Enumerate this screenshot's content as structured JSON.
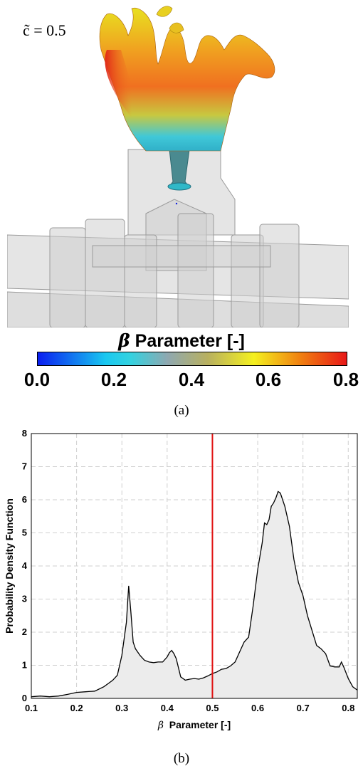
{
  "panel_a": {
    "annotation": "c̃ = 0.5",
    "colorbar": {
      "symbol": "β",
      "title": "Parameter [-]",
      "ticks": [
        "0.0",
        "0.2",
        "0.4",
        "0.6",
        "0.8"
      ],
      "colormap": "jet"
    },
    "caption": "(a)"
  },
  "panel_b": {
    "caption": "(b)"
  },
  "chart_data": {
    "type": "area",
    "xlabel_symbol": "β",
    "xlabel": "Parameter [-]",
    "ylabel": "Probability Density Function",
    "xlim": [
      0.1,
      0.82
    ],
    "ylim": [
      0,
      8
    ],
    "xticks": [
      "0.1",
      "0.2",
      "0.3",
      "0.4",
      "0.5",
      "0.6",
      "0.7",
      "0.8"
    ],
    "yticks": [
      "0",
      "1",
      "2",
      "3",
      "4",
      "5",
      "6",
      "7",
      "8"
    ],
    "grid": true,
    "reference_line": {
      "x": 0.5,
      "color": "#e01010"
    },
    "fill_color": "#ececec",
    "line_color": "#000000",
    "x": [
      0.1,
      0.12,
      0.14,
      0.16,
      0.18,
      0.2,
      0.22,
      0.24,
      0.26,
      0.27,
      0.28,
      0.29,
      0.3,
      0.31,
      0.315,
      0.32,
      0.325,
      0.33,
      0.34,
      0.35,
      0.36,
      0.37,
      0.38,
      0.39,
      0.4,
      0.405,
      0.41,
      0.415,
      0.42,
      0.43,
      0.44,
      0.45,
      0.46,
      0.47,
      0.48,
      0.49,
      0.5,
      0.51,
      0.52,
      0.53,
      0.54,
      0.55,
      0.56,
      0.57,
      0.58,
      0.59,
      0.6,
      0.61,
      0.615,
      0.62,
      0.625,
      0.63,
      0.635,
      0.64,
      0.645,
      0.65,
      0.66,
      0.67,
      0.68,
      0.69,
      0.7,
      0.71,
      0.72,
      0.73,
      0.74,
      0.75,
      0.76,
      0.77,
      0.78,
      0.785,
      0.79,
      0.8,
      0.81,
      0.82
    ],
    "y": [
      0.05,
      0.07,
      0.05,
      0.07,
      0.12,
      0.18,
      0.2,
      0.22,
      0.35,
      0.45,
      0.55,
      0.7,
      1.3,
      2.3,
      3.4,
      2.6,
      1.7,
      1.5,
      1.3,
      1.15,
      1.1,
      1.08,
      1.1,
      1.1,
      1.25,
      1.38,
      1.45,
      1.35,
      1.2,
      0.65,
      0.55,
      0.58,
      0.6,
      0.58,
      0.62,
      0.68,
      0.75,
      0.8,
      0.88,
      0.9,
      0.98,
      1.1,
      1.4,
      1.7,
      1.85,
      2.8,
      3.9,
      4.7,
      5.3,
      5.25,
      5.4,
      5.8,
      5.9,
      6.05,
      6.25,
      6.2,
      5.8,
      5.2,
      4.2,
      3.5,
      3.1,
      2.5,
      2.05,
      1.6,
      1.5,
      1.35,
      0.98,
      0.95,
      0.95,
      1.1,
      0.95,
      0.6,
      0.35,
      0.25
    ]
  }
}
